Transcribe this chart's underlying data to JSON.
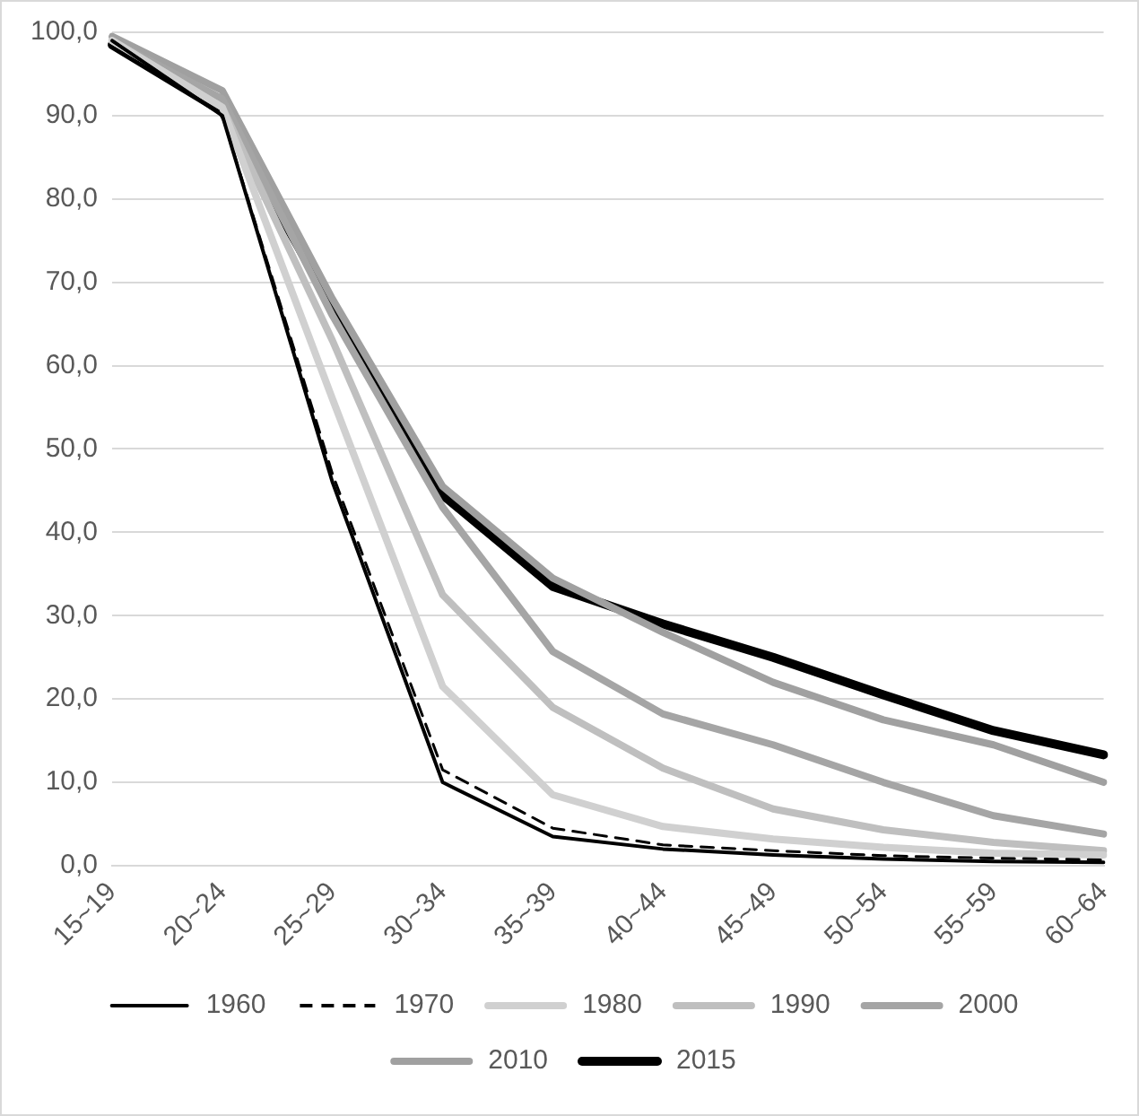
{
  "chart_data": {
    "type": "line",
    "categories": [
      "15~19",
      "20~24",
      "25~29",
      "30~34",
      "35~39",
      "40~44",
      "45~49",
      "50~54",
      "55~59",
      "60~64"
    ],
    "series": [
      {
        "name": "1960",
        "color": "#000000",
        "values": [
          99.0,
          90.0,
          46.0,
          10.0,
          3.5,
          2.0,
          1.3,
          0.8,
          0.5,
          0.4
        ]
      },
      {
        "name": "1970",
        "color": "#000000",
        "line_style": "dashed",
        "values": [
          99.0,
          90.0,
          47.0,
          11.5,
          4.5,
          2.5,
          1.8,
          1.2,
          0.9,
          0.7
        ]
      },
      {
        "name": "1980",
        "color": "#d0d0d0",
        "values": [
          99.0,
          91.0,
          56.0,
          21.5,
          8.5,
          4.7,
          3.2,
          2.2,
          1.5,
          1.3
        ]
      },
      {
        "name": "1990",
        "color": "#bfbfbf",
        "values": [
          99.0,
          91.0,
          63.0,
          32.5,
          19.0,
          11.7,
          6.8,
          4.3,
          2.8,
          1.8
        ]
      },
      {
        "name": "2000",
        "color": "#a5a5a5",
        "values": [
          99.0,
          92.0,
          66.0,
          43.0,
          25.7,
          18.2,
          14.5,
          10.0,
          6.0,
          3.8
        ]
      },
      {
        "name": "2010",
        "color": "#a0a0a0",
        "values": [
          99.5,
          93.0,
          68.0,
          45.5,
          34.5,
          28.0,
          22.0,
          17.5,
          14.5,
          10.0
        ]
      },
      {
        "name": "2015",
        "color": "#000000",
        "values": [
          98.5,
          90.5,
          67.0,
          44.5,
          33.5,
          29.0,
          25.0,
          20.5,
          16.2,
          13.3
        ]
      }
    ],
    "ylim": [
      0,
      100
    ],
    "yticks": [
      {
        "value": 0,
        "label": "0,0"
      },
      {
        "value": 10,
        "label": "10,0"
      },
      {
        "value": 20,
        "label": "20,0"
      },
      {
        "value": 30,
        "label": "30,0"
      },
      {
        "value": 40,
        "label": "40,0"
      },
      {
        "value": 50,
        "label": "50,0"
      },
      {
        "value": 60,
        "label": "60,0"
      },
      {
        "value": 70,
        "label": "70,0"
      },
      {
        "value": 80,
        "label": "80,0"
      },
      {
        "value": 90,
        "label": "90,0"
      },
      {
        "value": 100,
        "label": "100,0"
      }
    ],
    "grid": "y",
    "legend": "bottom",
    "marker": "none",
    "line_style": "solid"
  }
}
